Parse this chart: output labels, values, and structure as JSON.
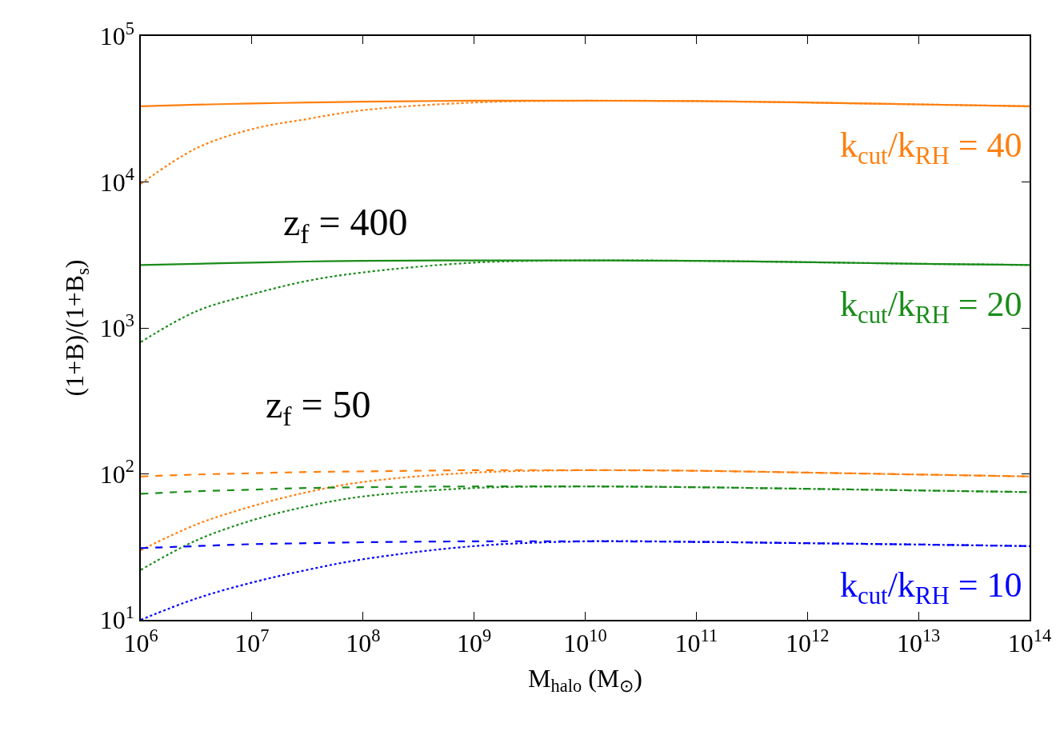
{
  "chart_data": {
    "type": "line",
    "xlabel": "M$_{halo}$ (M$_{⊙}$)",
    "ylabel": "(1+B)/(1+B$_{s}$)",
    "log": "xy",
    "grid": false,
    "legend": false,
    "xlim": [
      1000000,
      100000000000000
    ],
    "ylim": [
      10,
      100000
    ],
    "xticks": [
      {
        "value": 1000000,
        "label": "10$^{6}$"
      },
      {
        "value": 10000000,
        "label": "10$^{7}$"
      },
      {
        "value": 100000000,
        "label": "10$^{8}$"
      },
      {
        "value": 1000000000,
        "label": "10$^{9}$"
      },
      {
        "value": 10000000000,
        "label": "10$^{10}$"
      },
      {
        "value": 100000000000,
        "label": "10$^{11}$"
      },
      {
        "value": 1000000000000,
        "label": "10$^{12}$"
      },
      {
        "value": 10000000000000,
        "label": "10$^{13}$"
      },
      {
        "value": 100000000000000,
        "label": "10$^{14}$"
      }
    ],
    "yticks": [
      {
        "value": 10,
        "label": "10$^{1}$"
      },
      {
        "value": 100,
        "label": "10$^{2}$"
      },
      {
        "value": 1000,
        "label": "10$^{3}$"
      },
      {
        "value": 10000,
        "label": "10$^{4}$"
      },
      {
        "value": 100000,
        "label": "10$^{5}$"
      }
    ],
    "x": [
      1000000,
      3160000,
      10000000,
      31600000,
      100000000,
      1000000000,
      10000000000,
      100000000000,
      1000000000000,
      10000000000000,
      100000000000000
    ],
    "series": [
      {
        "name": "k$_{cut}$/k$_{RH}$ = 40",
        "color": "#ff7f0e",
        "line_style": "solid",
        "values": [
          33000,
          33800,
          34500,
          35000,
          35500,
          36000,
          36000,
          35800,
          35000,
          34000,
          33000
        ]
      },
      {
        "color": "#ff7f0e",
        "line_style": "dotted",
        "values": [
          9700,
          17000,
          23000,
          27000,
          31000,
          35000,
          36000,
          35800,
          35000,
          34000,
          33000
        ]
      },
      {
        "name": "k$_{cut}$/k$_{RH}$ = 20",
        "color": "#1a8c1a",
        "line_style": "solid",
        "values": [
          2700,
          2750,
          2800,
          2850,
          2880,
          2900,
          2900,
          2880,
          2820,
          2750,
          2700
        ]
      },
      {
        "color": "#1a8c1a",
        "line_style": "dotted",
        "values": [
          800,
          1300,
          1700,
          2100,
          2400,
          2800,
          2900,
          2880,
          2820,
          2750,
          2700
        ]
      },
      {
        "color": "#ff7f0e",
        "line_style": "dashed",
        "values": [
          96,
          99,
          101,
          103,
          104,
          106,
          106,
          105,
          102,
          99,
          96
        ]
      },
      {
        "color": "#ff7f0e",
        "line_style": "dotted",
        "values": [
          30,
          45,
          60,
          75,
          88,
          102,
          106,
          105,
          102,
          99,
          96
        ]
      },
      {
        "color": "#1a8c1a",
        "line_style": "dashed",
        "values": [
          73,
          76,
          78,
          80,
          81,
          82,
          82,
          81,
          79,
          77,
          75
        ]
      },
      {
        "color": "#1a8c1a",
        "line_style": "dotted",
        "values": [
          22,
          35,
          48,
          60,
          70,
          80,
          82,
          81,
          79,
          77,
          75
        ]
      },
      {
        "name": "k$_{cut}$/k$_{RH}$ = 10",
        "color": "#0000ff",
        "line_style": "dashed",
        "values": [
          31,
          32,
          33,
          33.5,
          34,
          34.5,
          34.5,
          34.2,
          33.5,
          32.8,
          32
        ]
      },
      {
        "color": "#0000ff",
        "line_style": "dotted",
        "values": [
          10,
          14,
          18,
          22,
          26,
          32,
          34.5,
          34.2,
          33.5,
          32.8,
          32
        ]
      }
    ],
    "annotations": [
      "z$_{f}$ = 400",
      "z$_{f}$ = 50"
    ]
  }
}
